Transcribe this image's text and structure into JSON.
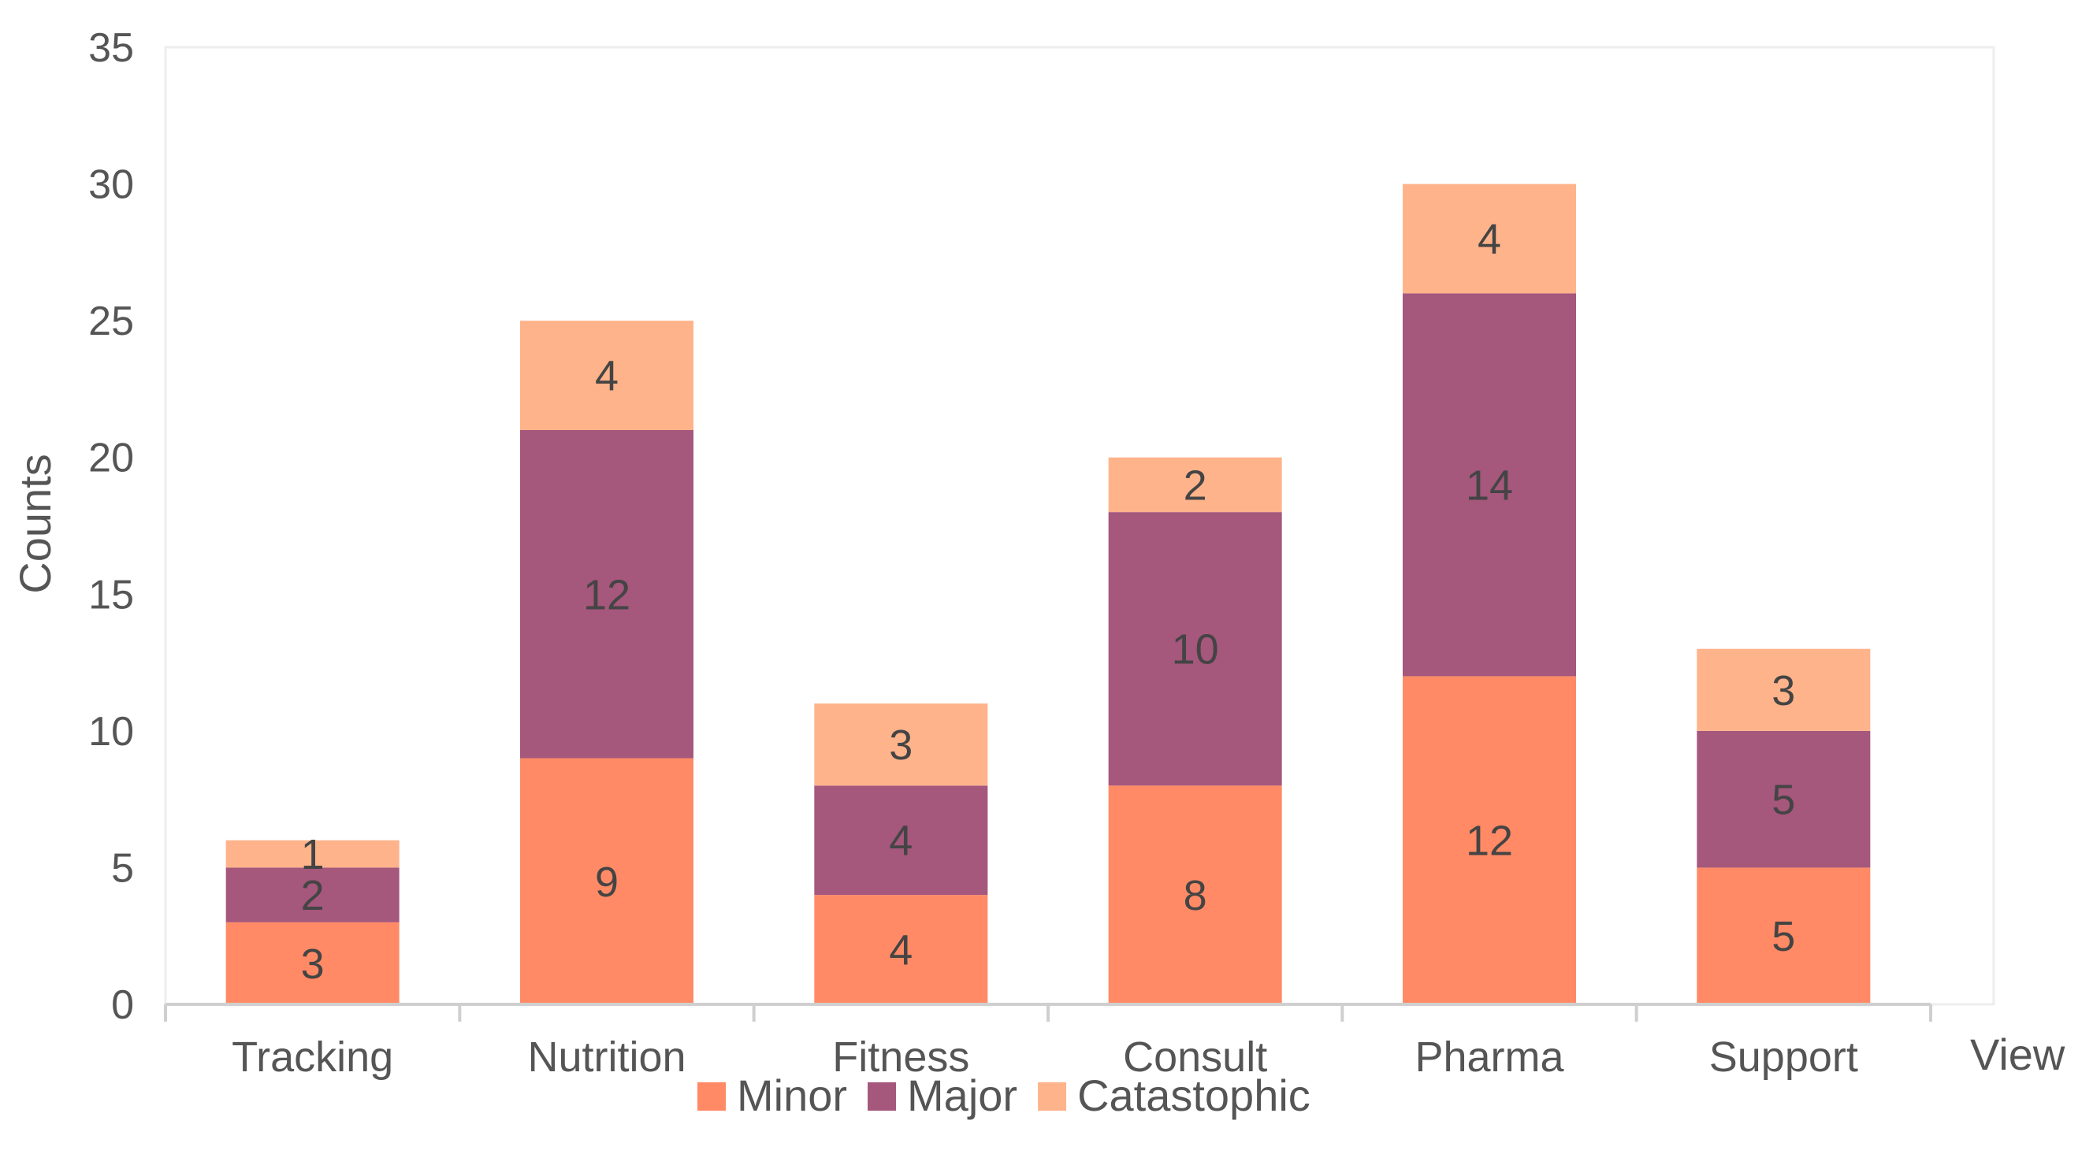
{
  "chart_data": {
    "type": "bar",
    "stacked": true,
    "categories": [
      "Tracking",
      "Nutrition",
      "Fitness",
      "Consult",
      "Pharma",
      "Support"
    ],
    "series": [
      {
        "name": "Minor",
        "values": [
          3,
          9,
          4,
          8,
          12,
          5
        ],
        "color": "#FF8A65"
      },
      {
        "name": "Major",
        "values": [
          2,
          12,
          4,
          10,
          14,
          5
        ],
        "color": "#A5577C"
      },
      {
        "name": "Catastophic",
        "values": [
          1,
          4,
          3,
          2,
          4,
          3
        ],
        "color": "#FFB38A"
      }
    ],
    "xlabel": "View",
    "ylabel": "Counts",
    "ylim": [
      0,
      35
    ],
    "yticks": [
      0,
      5,
      10,
      15,
      20,
      25,
      30,
      35
    ],
    "grid": false,
    "legend": "bottom-center",
    "data_labels": true
  }
}
